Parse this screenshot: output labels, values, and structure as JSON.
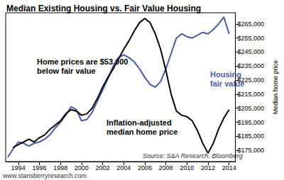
{
  "chart_data": {
    "type": "line",
    "title": "Median Existing Housing vs. Fair Value Housing",
    "y_axis_label": "Median home price",
    "annotation": "Home prices are $53,000 below fair value",
    "source": "Source: S&A Research, Bloomberg",
    "website": "www.stansberryresearch.com",
    "x": [
      1993,
      1993.5,
      1994,
      1994.5,
      1995,
      1995.5,
      1996,
      1996.5,
      1997,
      1997.5,
      1998,
      1998.5,
      1999,
      1999.5,
      2000,
      2000.5,
      2001,
      2001.5,
      2002,
      2002.5,
      2003,
      2003.5,
      2004,
      2004.5,
      2005,
      2005.5,
      2006,
      2006.5,
      2007,
      2007.5,
      2008,
      2008.5,
      2009,
      2009.5,
      2010,
      2010.5,
      2011,
      2011.5,
      2012,
      2012.5,
      2013,
      2013.5,
      2014
    ],
    "series": [
      {
        "name": "Inflation-adjusted median home price",
        "color": "#000000",
        "values": [
          null,
          177000,
          179000,
          181000,
          183000,
          181000,
          184000,
          186000,
          190000,
          193000,
          196000,
          201000,
          204000,
          203000,
          200000,
          201000,
          205000,
          212000,
          220000,
          227000,
          233000,
          240000,
          247000,
          253000,
          260000,
          266000,
          269000,
          266000,
          258000,
          247000,
          232000,
          215000,
          203000,
          200000,
          199000,
          196000,
          189000,
          180000,
          173000,
          180000,
          190000,
          198000,
          204000
        ]
      },
      {
        "name": "Housing fair value",
        "color": "#4a5ba6",
        "values": [
          170000,
          176000,
          181000,
          180000,
          178000,
          180000,
          181000,
          183000,
          186000,
          191000,
          195000,
          200000,
          206000,
          204000,
          196000,
          197000,
          202000,
          210000,
          218000,
          226000,
          235000,
          241000,
          243000,
          241000,
          238000,
          233000,
          227000,
          222000,
          220000,
          224000,
          233000,
          244000,
          255000,
          258000,
          256000,
          255000,
          257000,
          259000,
          258000,
          261000,
          265000,
          270000,
          258000
        ]
      }
    ],
    "xlim": [
      1992.8,
      2014.6
    ],
    "xticks": [
      1994,
      1996,
      1998,
      2000,
      2002,
      2004,
      2006,
      2008,
      2010,
      2012,
      2014
    ],
    "ylim": [
      167000,
      273000
    ],
    "yticks": [
      {
        "value": 175000,
        "label": "$175,000"
      },
      {
        "value": 185000,
        "label": "$185,000"
      },
      {
        "value": 195000,
        "label": "$195,000"
      },
      {
        "value": 205000,
        "label": "$205,000"
      },
      {
        "value": 215000,
        "label": "$215,000"
      },
      {
        "value": 225000,
        "label": "$225,000"
      },
      {
        "value": 235000,
        "label": "$235,000"
      },
      {
        "value": 245000,
        "label": "$245,000"
      },
      {
        "value": 255000,
        "label": "$255,000"
      },
      {
        "value": 265000,
        "label": "$265,000"
      }
    ],
    "grid": false
  }
}
